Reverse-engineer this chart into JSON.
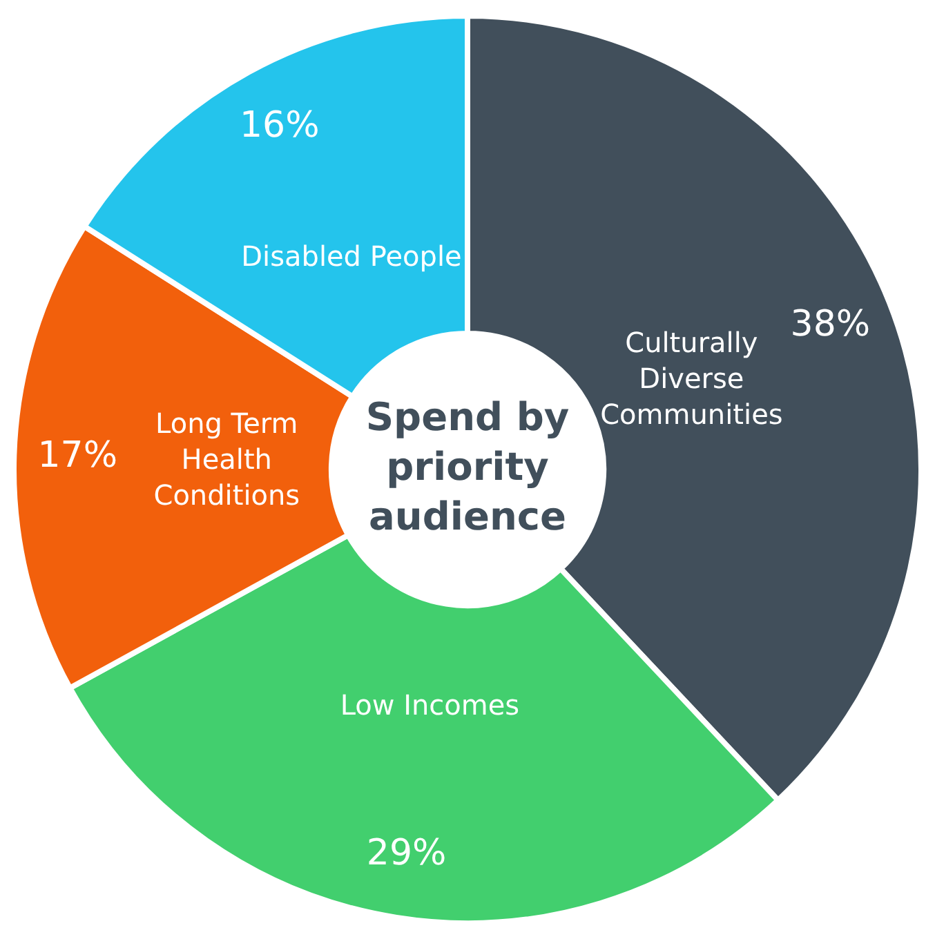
{
  "chart_data": {
    "type": "donut",
    "title": "Spend by priority audience",
    "categories": [
      "Culturally Diverse Communities",
      "Low Incomes",
      "Long Term Health Conditions",
      "Disabled People"
    ],
    "values": [
      38,
      29,
      17,
      16
    ],
    "value_labels": [
      "38%",
      "29%",
      "17%",
      "16%"
    ],
    "colors": [
      "#414f5b",
      "#42cf6e",
      "#f2600c",
      "#24c4ec"
    ],
    "legend": false
  }
}
